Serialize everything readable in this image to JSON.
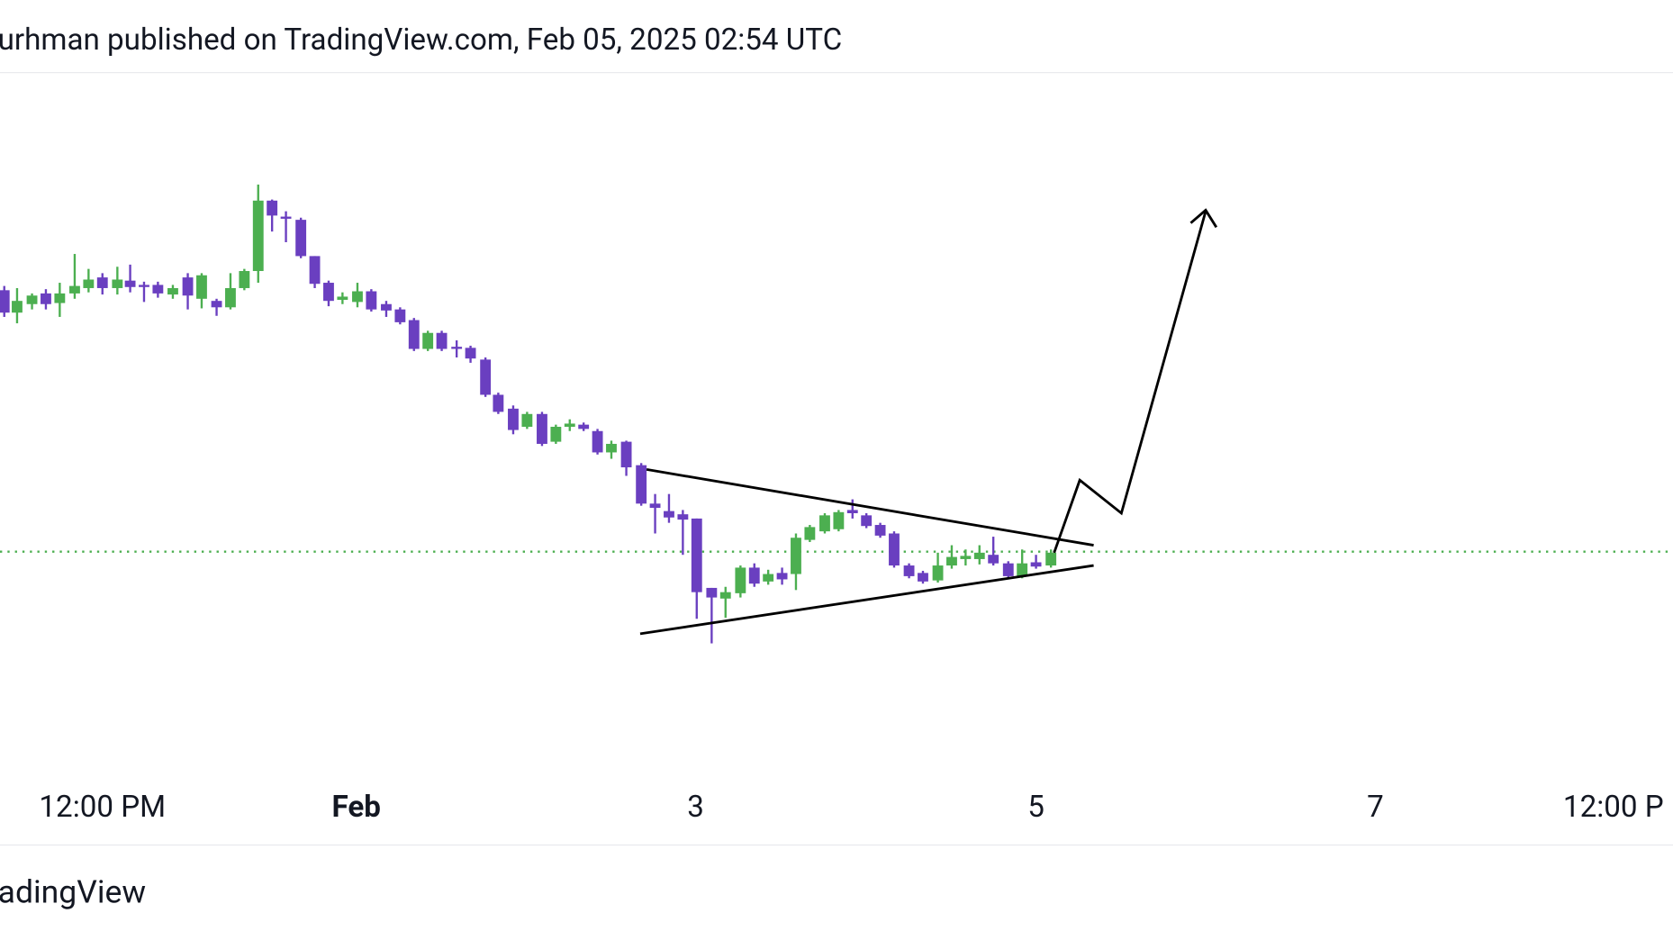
{
  "header": {
    "text": "urhman published on TradingView.com, Feb 05, 2025 02:54 UTC"
  },
  "time_axis": {
    "labels": [
      "12:00 PM",
      "Feb",
      "3",
      "5",
      "7",
      "12:00 P"
    ]
  },
  "footer": {
    "brand": "adingView"
  }
}
